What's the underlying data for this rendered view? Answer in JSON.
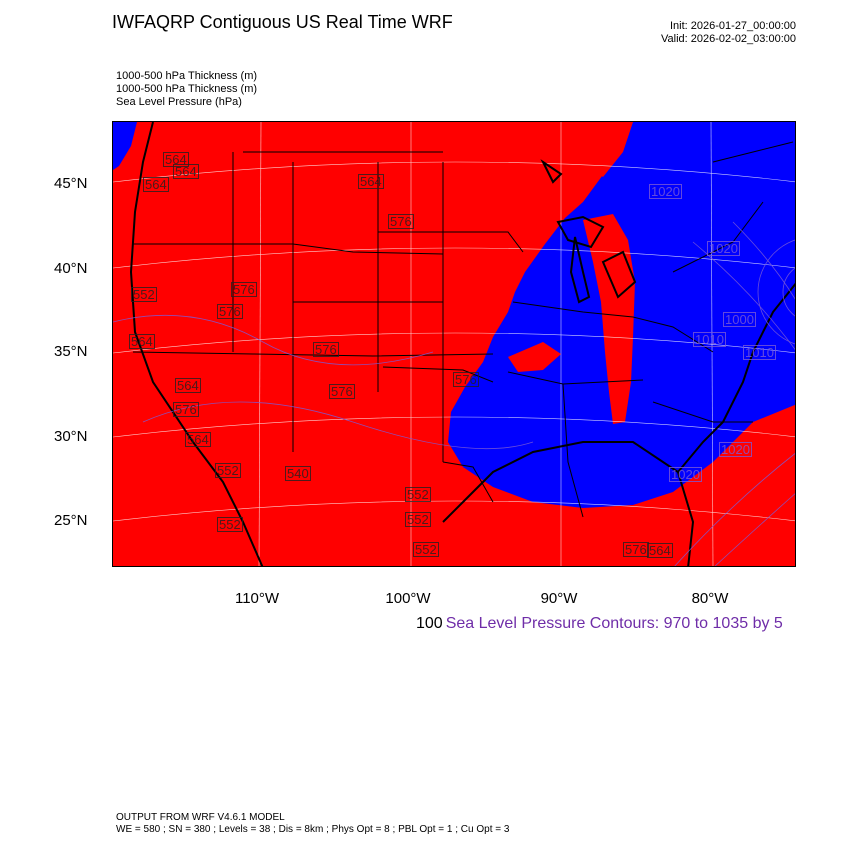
{
  "header": {
    "title": "IWFAQRP Contiguous US Real Time WRF",
    "init": "Init: 2026-01-27_00:00:00",
    "valid": "Valid: 2026-02-02_03:00:00"
  },
  "fields": [
    "1000-500 hPa Thickness   (m)",
    "1000-500 hPa Thickness   (m)",
    "Sea Level Pressure   (hPa)"
  ],
  "map": {
    "colors": {
      "warm": "#ff0000",
      "cold": "#0000ff",
      "contour": "#7b5bd6",
      "borders": "#000000",
      "grid": "#ffffff"
    },
    "lat_labels": [
      "45°N",
      "40°N",
      "35°N",
      "30°N",
      "25°N"
    ],
    "lon_labels": [
      "110°W",
      "100°W",
      "90°W",
      "80°W"
    ],
    "thickness_labels": [
      "564",
      "564",
      "564",
      "564",
      "576",
      "576",
      "576",
      "576",
      "576",
      "564",
      "552",
      "564",
      "576",
      "564",
      "552",
      "552",
      "540",
      "552",
      "552",
      "576",
      "564",
      "552",
      "576"
    ],
    "pressure_labels": [
      "1020",
      "1020",
      "1010",
      "1000",
      "1010",
      "1020",
      "1020"
    ]
  },
  "contour_info": {
    "num": "100",
    "text": "Sea Level Pressure Contours: 970 to 1035 by 5"
  },
  "footer": {
    "line1": "OUTPUT FROM WRF V4.6.1 MODEL",
    "line2": "WE = 580 ; SN = 380 ; Levels = 38 ; Dis = 8km ; Phys Opt = 8 ; PBL Opt = 1 ; Cu Opt = 3"
  }
}
